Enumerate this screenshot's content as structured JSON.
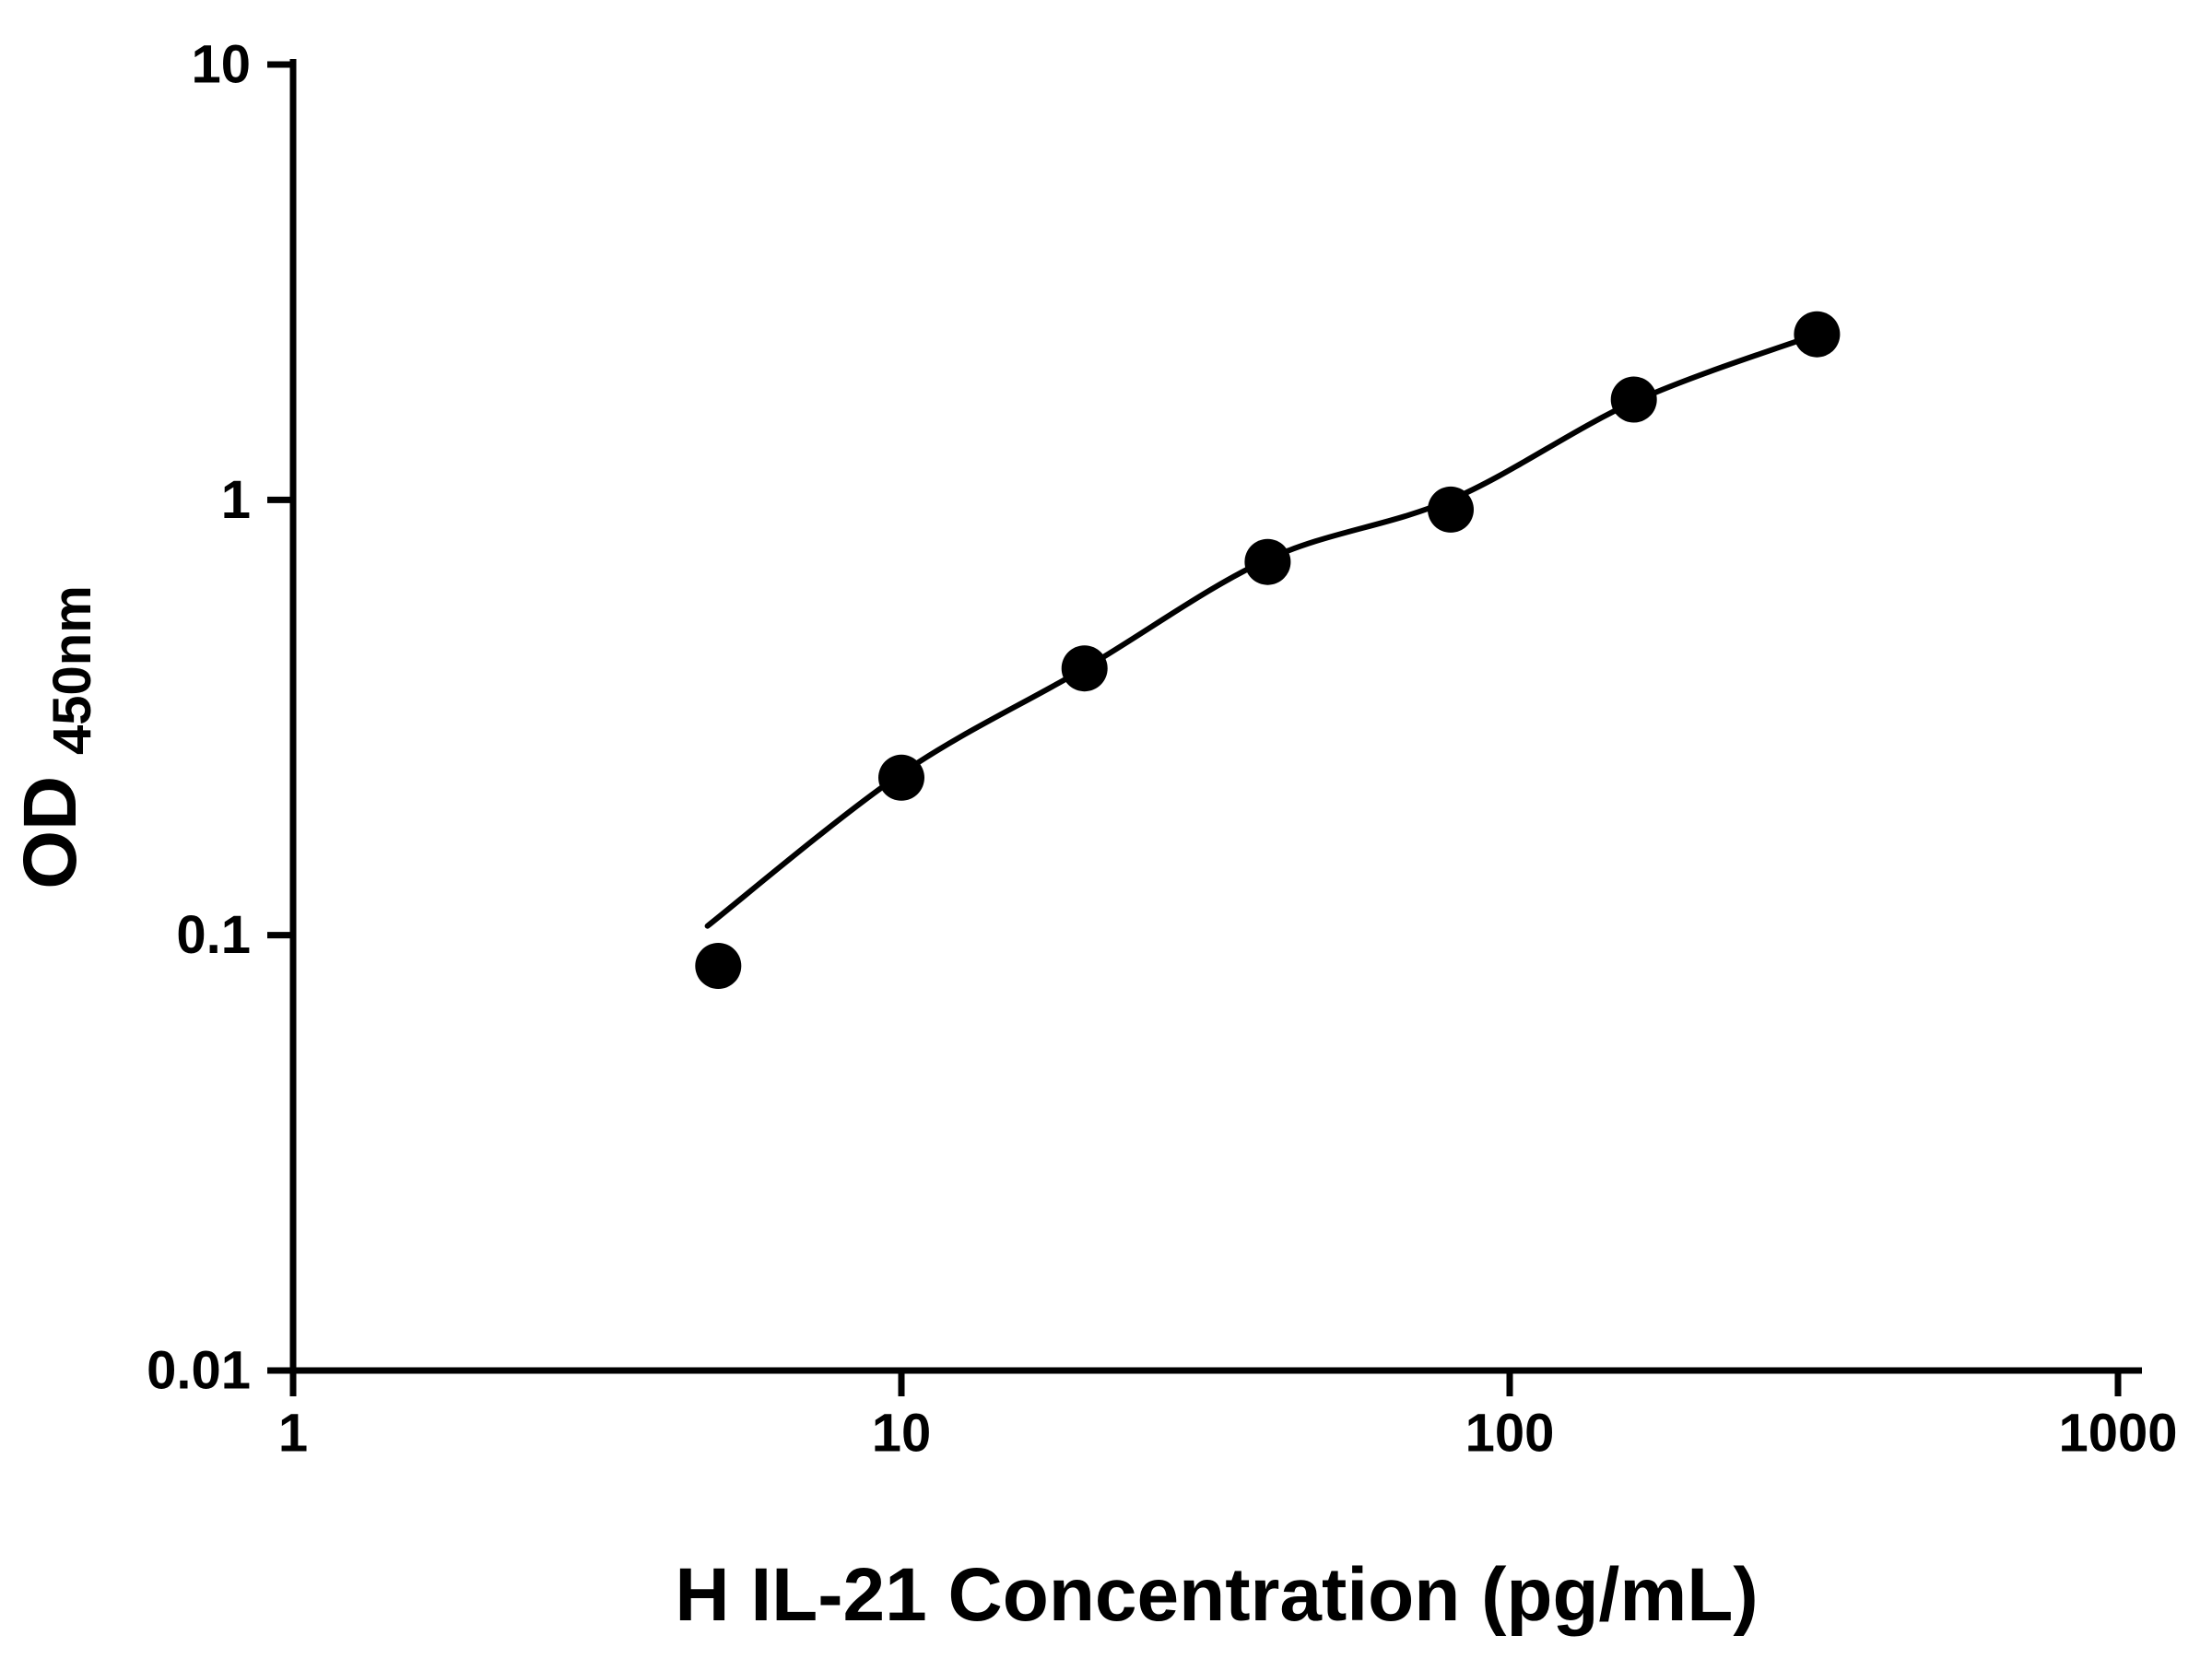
{
  "figure": {
    "background": "#ffffff",
    "foreground": "#000000"
  },
  "chart_data": {
    "type": "scatter",
    "title": "",
    "xlabel": "H IL-21 Concentration (pg/mL)",
    "ylabel": "OD450nm",
    "ylabel_main": "OD",
    "ylabel_sub": "450nm",
    "x_scale": "log",
    "y_scale": "log",
    "xlim": [
      1,
      1000
    ],
    "ylim": [
      0.01,
      10
    ],
    "grid": false,
    "legend": false,
    "x_ticks": [
      {
        "value": 1,
        "label": "1"
      },
      {
        "value": 10,
        "label": "10"
      },
      {
        "value": 100,
        "label": "100"
      },
      {
        "value": 1000,
        "label": "1000"
      }
    ],
    "y_ticks": [
      {
        "value": 0.01,
        "label": "0.01"
      },
      {
        "value": 0.1,
        "label": "0.1"
      },
      {
        "value": 1,
        "label": "1"
      },
      {
        "value": 10,
        "label": "10"
      }
    ],
    "series": [
      {
        "marker": "filled-circle",
        "color": "#000000",
        "points": [
          {
            "x": 5,
            "y": 0.085
          },
          {
            "x": 10,
            "y": 0.23
          },
          {
            "x": 20,
            "y": 0.41
          },
          {
            "x": 40,
            "y": 0.72
          },
          {
            "x": 80,
            "y": 0.95
          },
          {
            "x": 160,
            "y": 1.7
          },
          {
            "x": 320,
            "y": 2.4
          }
        ]
      }
    ],
    "fit_curve": {
      "color": "#000000",
      "points": [
        {
          "x": 4.8,
          "y": 0.105
        },
        {
          "x": 10,
          "y": 0.235
        },
        {
          "x": 20,
          "y": 0.41
        },
        {
          "x": 40,
          "y": 0.73
        },
        {
          "x": 80,
          "y": 1.0
        },
        {
          "x": 160,
          "y": 1.68
        },
        {
          "x": 320,
          "y": 2.4
        }
      ]
    }
  }
}
